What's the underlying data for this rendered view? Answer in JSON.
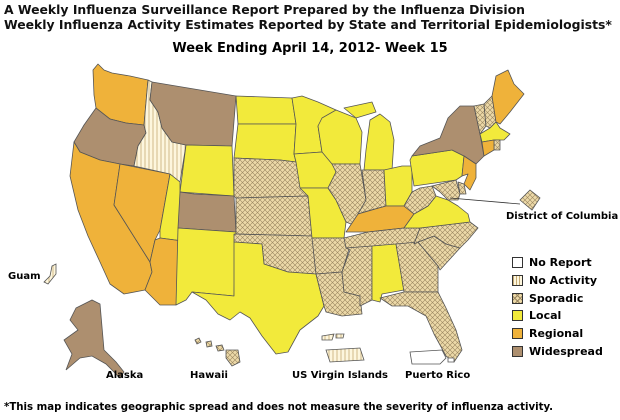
{
  "header": {
    "title_line1": "A Weekly Influenza Surveillance Report Prepared by the Influenza Division",
    "title_line2": "Weekly Influenza Activity Estimates Reported by State and Territorial Epidemiologists*",
    "week_label": "Week Ending April 14, 2012- Week 15"
  },
  "colors": {
    "no_report": "#ffffff",
    "no_activity": "#fdf6dd",
    "sporadic": "#ecd9a8",
    "local": "#f2ea3b",
    "regional": "#efb23a",
    "widespread": "#ad8f6f",
    "border": "#555555"
  },
  "legend": [
    {
      "key": "no_report",
      "label": "No Report"
    },
    {
      "key": "no_activity",
      "label": "No Activity"
    },
    {
      "key": "sporadic",
      "label": "Sporadic"
    },
    {
      "key": "local",
      "label": "Local"
    },
    {
      "key": "regional",
      "label": "Regional"
    },
    {
      "key": "widespread",
      "label": "Widespread"
    }
  ],
  "region_labels": {
    "dc": "District of Columbia",
    "guam": "Guam",
    "alaska": "Alaska",
    "hawaii": "Hawaii",
    "usvi": "US Virgin Islands",
    "pr": "Puerto Rico"
  },
  "activity": {
    "WA": "regional",
    "OR": "widespread",
    "CA": "regional",
    "NV": "regional",
    "ID": "no_activity",
    "MT": "widespread",
    "WY": "local",
    "UT": "local",
    "AZ": "regional",
    "CO": "widespread",
    "NM": "local",
    "ND": "local",
    "SD": "local",
    "NE": "sporadic",
    "KS": "sporadic",
    "OK": "sporadic",
    "TX": "local",
    "MN": "local",
    "IA": "local",
    "MO": "local",
    "AR": "sporadic",
    "LA": "sporadic",
    "WI": "local",
    "IL": "sporadic",
    "MI": "local",
    "IN": "sporadic",
    "OH": "local",
    "KY": "regional",
    "TN": "sporadic",
    "MS": "sporadic",
    "AL": "local",
    "GA": "sporadic",
    "FL": "sporadic",
    "SC": "sporadic",
    "NC": "sporadic",
    "VA": "local",
    "WV": "sporadic",
    "PA": "local",
    "NY": "widespread",
    "VT": "sporadic",
    "NH": "sporadic",
    "ME": "regional",
    "MA": "local",
    "RI": "sporadic",
    "CT": "regional",
    "NJ": "regional",
    "DE": "sporadic",
    "MD": "sporadic",
    "DC": "sporadic",
    "AK": "widespread",
    "HI": "sporadic",
    "GU": "no_activity",
    "VI": "no_activity",
    "PR": "no_report"
  },
  "footnote": "*This map indicates geographic spread and does not measure the severity of influenza activity."
}
